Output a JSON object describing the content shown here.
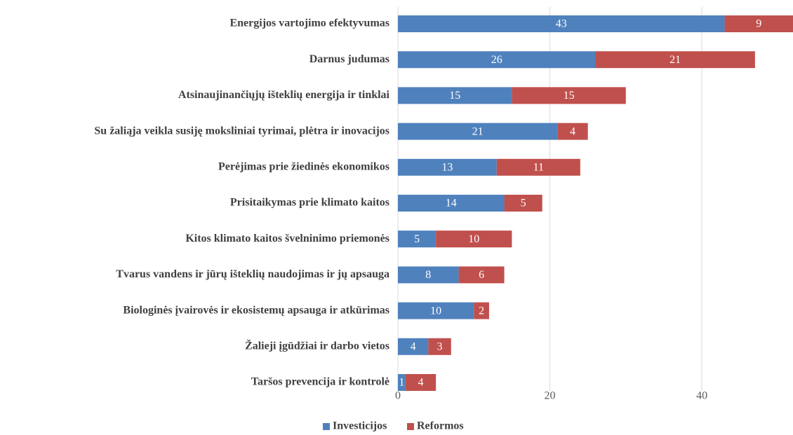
{
  "chart_data": {
    "type": "bar",
    "orientation": "horizontal",
    "stacked": true,
    "categories": [
      "Energijos vartojimo efektyvumas",
      "Darnus judumas",
      "Atsinaujinančiųjų išteklių energija ir tinklai",
      "Su žaliąja veikla susiję moksliniai tyrimai, plėtra ir inovacijos",
      "Perėjimas prie žiedinės ekonomikos",
      "Prisitaikymas prie klimato kaitos",
      "Kitos klimato kaitos švelninimo priemonės",
      "Tvarus vandens ir jūrų išteklių naudojimas ir jų apsauga",
      "Biologinės įvairovės ir ekosistemų apsauga ir atkūrimas",
      "Žalieji įgūdžiai ir darbo vietos",
      "Taršos prevencija ir kontrolė"
    ],
    "series": [
      {
        "name": "Investicijos",
        "color": "#4f81bd",
        "values": [
          43,
          26,
          15,
          21,
          13,
          14,
          5,
          8,
          10,
          4,
          1
        ]
      },
      {
        "name": "Reformos",
        "color": "#c0504d",
        "values": [
          9,
          21,
          15,
          4,
          11,
          5,
          10,
          6,
          2,
          3,
          4
        ]
      }
    ],
    "xlim": [
      0,
      52
    ],
    "xticks": [
      0,
      20,
      40
    ],
    "grid": true,
    "legend": "bottom"
  }
}
